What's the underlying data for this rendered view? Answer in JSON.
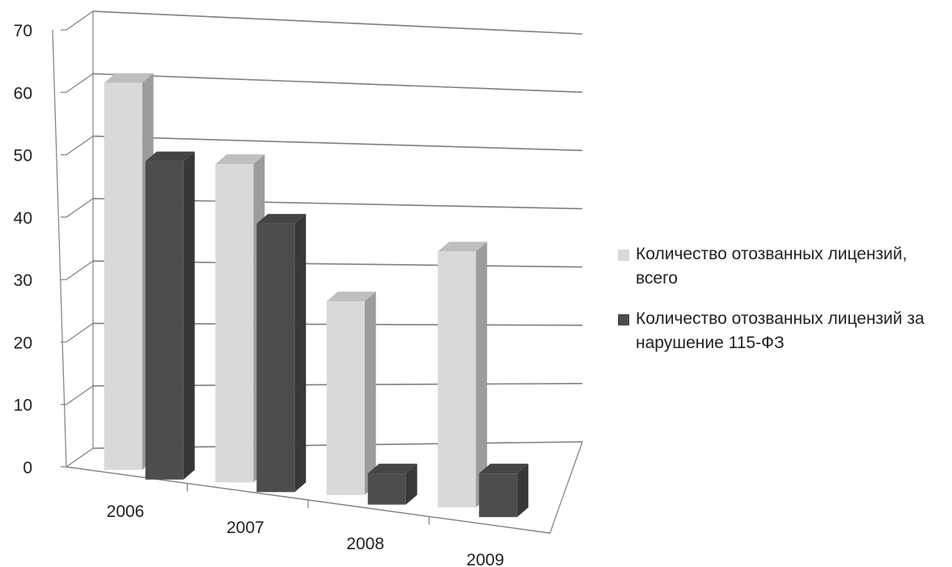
{
  "chart_data": {
    "type": "bar",
    "categories": [
      "2006",
      "2007",
      "2008",
      "2009"
    ],
    "series": [
      {
        "name": "Количество отозванных лицензий, всего",
        "values": [
          62,
          51,
          31,
          41
        ],
        "color": "#d9d9d9"
      },
      {
        "name": "Количество отозванных лицензий за нарушение 115-ФЗ",
        "values": [
          51,
          43,
          5,
          7
        ],
        "color": "#4d4d4d"
      }
    ],
    "yticks": [
      "0",
      "10",
      "20",
      "30",
      "40",
      "50",
      "60",
      "70"
    ],
    "ylim": [
      0,
      70
    ],
    "grid": true,
    "legend_position": "right",
    "style": "3d-clustered-column"
  }
}
